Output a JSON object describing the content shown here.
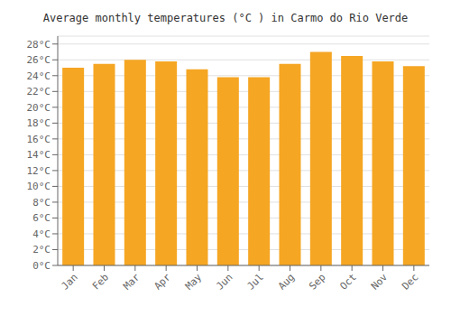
{
  "chart_data": {
    "type": "bar",
    "title": "Average monthly temperatures (°C ) in Carmo do Rio Verde",
    "categories": [
      "Jan",
      "Feb",
      "Mar",
      "Apr",
      "May",
      "Jun",
      "Jul",
      "Aug",
      "Sep",
      "Oct",
      "Nov",
      "Dec"
    ],
    "values": [
      25.0,
      25.5,
      26.0,
      25.8,
      24.8,
      23.8,
      23.8,
      25.5,
      27.0,
      26.5,
      25.8,
      25.2
    ],
    "color": "#F5A623",
    "ylim": [
      0,
      29
    ],
    "yticks": [
      {
        "value": 0,
        "label": "0°C"
      },
      {
        "value": 2,
        "label": "2°C"
      },
      {
        "value": 4,
        "label": "4°C"
      },
      {
        "value": 6,
        "label": "6°C"
      },
      {
        "value": 8,
        "label": "8°C"
      },
      {
        "value": 10,
        "label": "10°C"
      },
      {
        "value": 12,
        "label": "12°C"
      },
      {
        "value": 14,
        "label": "14°C"
      },
      {
        "value": 16,
        "label": "16°C"
      },
      {
        "value": 18,
        "label": "18°C"
      },
      {
        "value": 20,
        "label": "20°C"
      },
      {
        "value": 22,
        "label": "22°C"
      },
      {
        "value": 24,
        "label": "24°C"
      },
      {
        "value": 26,
        "label": "26°C"
      },
      {
        "value": 28,
        "label": "28°C"
      }
    ],
    "grid": true
  }
}
